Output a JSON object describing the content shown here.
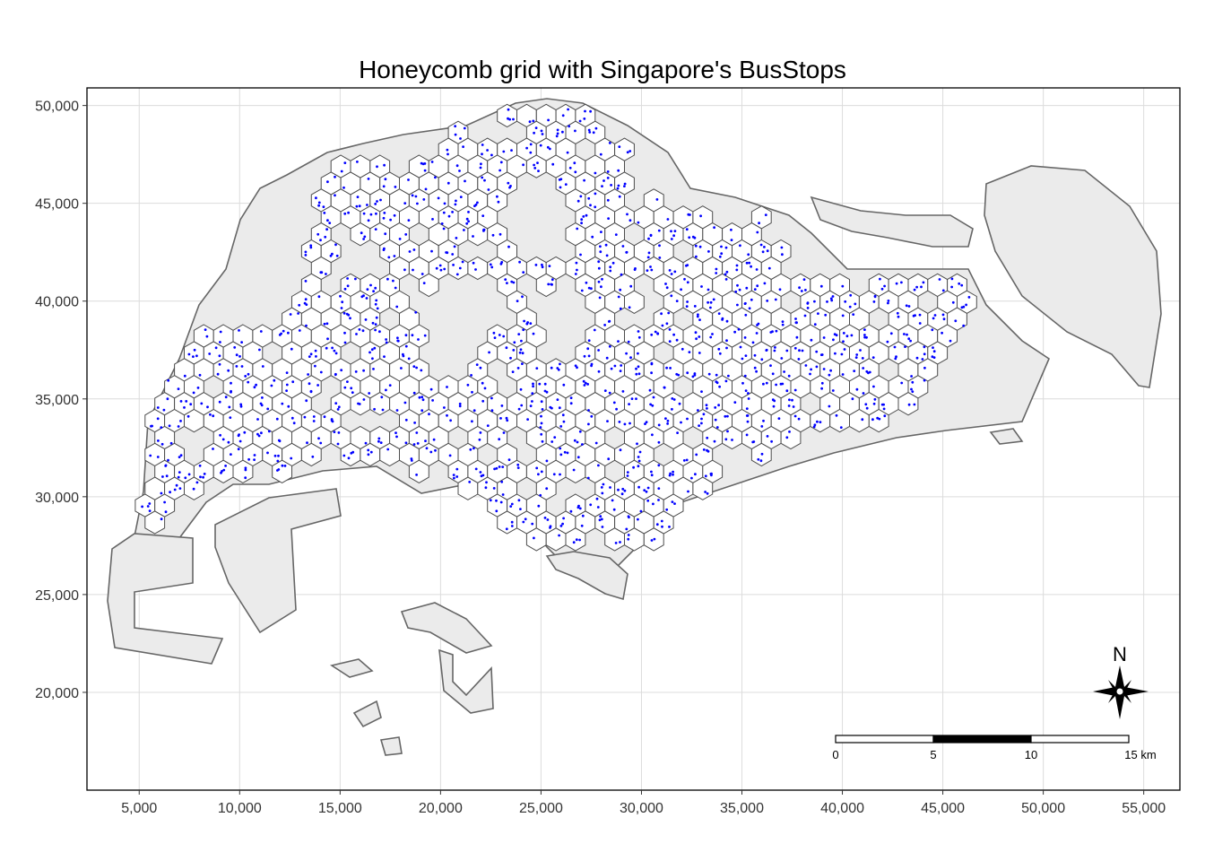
{
  "chart_data": {
    "type": "map",
    "title": "Honeycomb grid with Singapore's BusStops",
    "xlim": [
      2400,
      56800
    ],
    "ylim": [
      15000,
      50900
    ],
    "x_ticks": [
      5000,
      10000,
      15000,
      20000,
      25000,
      30000,
      35000,
      40000,
      45000,
      50000,
      55000
    ],
    "x_tick_labels": [
      "5,000",
      "10,000",
      "15,000",
      "20,000",
      "25,000",
      "30,000",
      "35,000",
      "40,000",
      "45,000",
      "50,000",
      "55,000"
    ],
    "y_ticks": [
      20000,
      25000,
      30000,
      35000,
      40000,
      45000,
      50000
    ],
    "y_tick_labels": [
      "20,000",
      "25,000",
      "30,000",
      "35,000",
      "40,000",
      "45,000",
      "50,000"
    ],
    "grid": true,
    "colors": {
      "land_fill": "#ebebeb",
      "land_stroke": "#666666",
      "hex_fill": "#ffffff",
      "hex_stroke": "#4d4d4d",
      "busstop": "#0000ff",
      "grid": "#dcdcdc",
      "panel_border": "#000000"
    },
    "layers": [
      "land",
      "honeycomb-grid",
      "bus-stops"
    ],
    "scale_bar": {
      "labels": [
        "0",
        "5",
        "10",
        "15 km"
      ],
      "breaks_km": [
        0,
        5,
        10,
        15
      ],
      "position": "bottom-right"
    },
    "north_arrow": {
      "label": "N",
      "position": "bottom-right"
    }
  }
}
